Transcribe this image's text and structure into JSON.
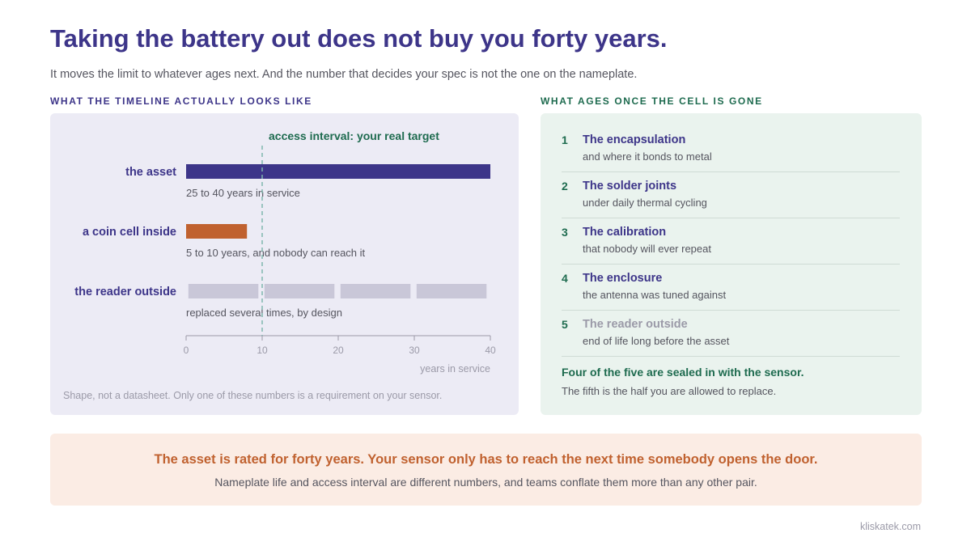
{
  "title": "Taking the battery out does not buy you forty years.",
  "subtitle": "It moves the limit to whatever ages next. And the number that decides your spec is not the one on the nameplate.",
  "left_section_label": "WHAT THE TIMELINE ACTUALLY LOOKS LIKE",
  "right_section_label": "WHAT AGES ONCE THE CELL IS GONE",
  "chart_data": {
    "type": "bar",
    "xlabel": "years in service",
    "xlim": [
      0,
      40
    ],
    "xticks": [
      0,
      10,
      20,
      30,
      40
    ],
    "grid": false,
    "reference_line": {
      "x": 10,
      "label": "access interval: your real target",
      "color": "#7fb8ad"
    },
    "series": [
      {
        "name": "the asset",
        "start": 0,
        "end": 40,
        "caption": "25 to 40 years in service",
        "color": "#3d3589"
      },
      {
        "name": "a coin cell inside",
        "start": 0,
        "end": 8,
        "caption": "5 to 10 years, and nobody can reach it",
        "color": "#c0612f"
      },
      {
        "name": "the reader outside",
        "segments": [
          [
            0.3,
            9.5
          ],
          [
            10.3,
            19.5
          ],
          [
            20.3,
            29.5
          ],
          [
            30.3,
            39.5
          ]
        ],
        "caption": "replaced several times, by design",
        "color": "#c9c7d8"
      }
    ],
    "note": "Shape, not a datasheet. Only one of these numbers is a requirement on your sensor."
  },
  "steps": [
    {
      "num": "1",
      "title": "The encapsulation",
      "sub": "and where it bonds to metal"
    },
    {
      "num": "2",
      "title": "The solder joints",
      "sub": "under daily thermal cycling"
    },
    {
      "num": "3",
      "title": "The calibration",
      "sub": "that nobody will ever repeat"
    },
    {
      "num": "4",
      "title": "The enclosure",
      "sub": "the antenna was tuned against"
    },
    {
      "num": "5",
      "title": "The reader outside",
      "sub": "end of life long before the asset"
    }
  ],
  "summary": {
    "title": "Four of the five are sealed in with the sensor.",
    "sub": "The fifth is the half you are allowed to replace."
  },
  "banner": {
    "title": "The asset is rated for forty years. Your sensor only has to reach the next time somebody opens the door.",
    "sub": "Nameplate life and access interval are different numbers, and teams conflate them more than any other pair."
  },
  "footer": "kliskatek.com",
  "colors": {
    "primary": "#3d3589",
    "accent_orange": "#c0612f",
    "accent_green": "#1e6b4f",
    "reader_gray": "#c9c7d8"
  }
}
